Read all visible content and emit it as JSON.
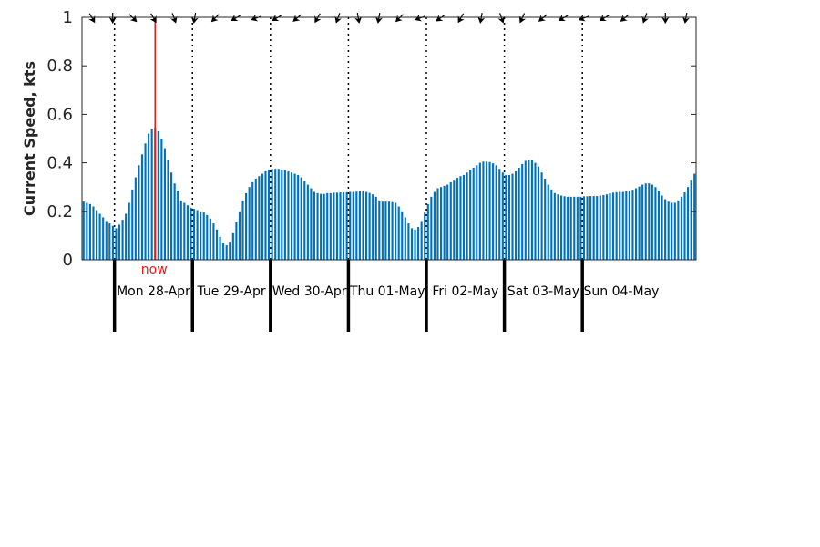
{
  "chart_data": {
    "type": "bar",
    "ylabel": "Current Speed, kts",
    "ylim": [
      0,
      1
    ],
    "yticks": [
      "0",
      "0.2",
      "0.4",
      "0.6",
      "0.8",
      "1"
    ],
    "ytick_values": [
      0,
      0.2,
      0.4,
      0.6,
      0.8,
      1
    ],
    "bar_color": "#0072bd",
    "now_color": "#e41a1c",
    "now_label": "now",
    "now_hour": 22,
    "hours_per_bar": 1,
    "series": [
      {
        "values": [
          0.24,
          0.235,
          0.23,
          0.22,
          0.205,
          0.19,
          0.175,
          0.16,
          0.15,
          0.14,
          0.13,
          0.145,
          0.165,
          0.19,
          0.235,
          0.29,
          0.34,
          0.39,
          0.435,
          0.48,
          0.52,
          0.54,
          0.545,
          0.53,
          0.5,
          0.46,
          0.41,
          0.36,
          0.315,
          0.285,
          0.245,
          0.235,
          0.225,
          0.215,
          0.21,
          0.205,
          0.2,
          0.195,
          0.185,
          0.17,
          0.15,
          0.125,
          0.095,
          0.07,
          0.06,
          0.075,
          0.11,
          0.155,
          0.2,
          0.245,
          0.275,
          0.3,
          0.32,
          0.335,
          0.345,
          0.355,
          0.365,
          0.37,
          0.375,
          0.375,
          0.375,
          0.37,
          0.37,
          0.365,
          0.36,
          0.355,
          0.35,
          0.34,
          0.325,
          0.31,
          0.295,
          0.28,
          0.275,
          0.272,
          0.272,
          0.275,
          0.275,
          0.277,
          0.277,
          0.278,
          0.278,
          0.279,
          0.28,
          0.28,
          0.281,
          0.282,
          0.282,
          0.28,
          0.276,
          0.27,
          0.26,
          0.245,
          0.24,
          0.24,
          0.24,
          0.238,
          0.235,
          0.22,
          0.2,
          0.175,
          0.15,
          0.13,
          0.125,
          0.135,
          0.16,
          0.195,
          0.23,
          0.26,
          0.28,
          0.295,
          0.3,
          0.305,
          0.31,
          0.32,
          0.33,
          0.338,
          0.345,
          0.35,
          0.36,
          0.37,
          0.38,
          0.39,
          0.4,
          0.405,
          0.405,
          0.403,
          0.398,
          0.39,
          0.375,
          0.36,
          0.35,
          0.35,
          0.355,
          0.365,
          0.38,
          0.395,
          0.408,
          0.412,
          0.41,
          0.4,
          0.385,
          0.36,
          0.335,
          0.31,
          0.29,
          0.275,
          0.27,
          0.265,
          0.262,
          0.26,
          0.26,
          0.26,
          0.26,
          0.26,
          0.262,
          0.262,
          0.263,
          0.263,
          0.263,
          0.265,
          0.267,
          0.27,
          0.274,
          0.277,
          0.279,
          0.28,
          0.28,
          0.282,
          0.285,
          0.289,
          0.295,
          0.302,
          0.31,
          0.315,
          0.315,
          0.31,
          0.3,
          0.285,
          0.265,
          0.25,
          0.24,
          0.235,
          0.235,
          0.245,
          0.26,
          0.278,
          0.3,
          0.33,
          0.355
        ]
      }
    ],
    "day_labels": [
      "Mon 28-Apr",
      "Tue 29-Apr",
      "Wed 30-Apr",
      "Thu 01-May",
      "Fri 02-May",
      "Sat 03-May",
      "Sun 04-May"
    ],
    "day_start_hour": [
      10,
      34,
      58,
      82,
      106,
      130,
      154
    ],
    "direction_arrows_deg": [
      60,
      90,
      45,
      60,
      70,
      100,
      135,
      150,
      160,
      150,
      140,
      120,
      110,
      80,
      100,
      135,
      160,
      145,
      120,
      100,
      70,
      115,
      140,
      150,
      160,
      150,
      140,
      110,
      90,
      100
    ]
  }
}
